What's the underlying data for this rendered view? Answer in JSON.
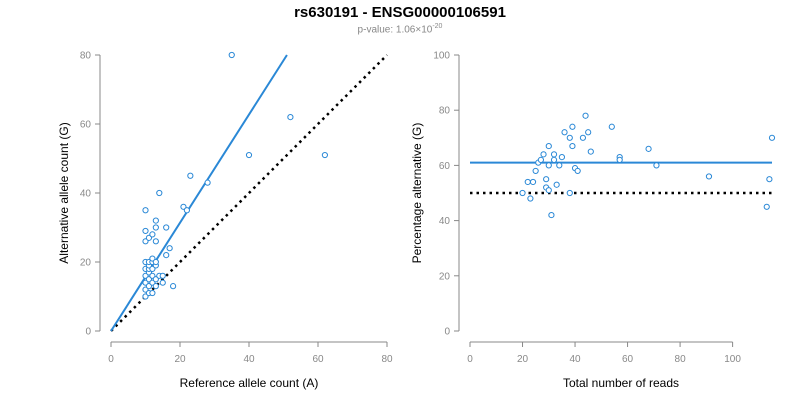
{
  "header": {
    "title": "rs630191 - ENSG00000106591",
    "pvalue_prefix": "p-value: 1.06×10",
    "pvalue_exponent": "-20"
  },
  "colors": {
    "accent": "#2a88d6",
    "reference": "#000000",
    "axis": "#888888"
  },
  "chart_data": [
    {
      "type": "scatter",
      "xlabel": "Reference allele count (A)",
      "ylabel": "Alternative allele count (G)",
      "xlim": [
        0,
        80
      ],
      "ylim": [
        0,
        80
      ],
      "xticks": [
        0,
        20,
        40,
        60,
        80
      ],
      "yticks": [
        0,
        20,
        40,
        60,
        80
      ],
      "grid": false,
      "points": [
        [
          10,
          10
        ],
        [
          10,
          12
        ],
        [
          10,
          14
        ],
        [
          10,
          16
        ],
        [
          10,
          18
        ],
        [
          10,
          20
        ],
        [
          10,
          26
        ],
        [
          10,
          29
        ],
        [
          10,
          35
        ],
        [
          11,
          11
        ],
        [
          11,
          13
        ],
        [
          11,
          15
        ],
        [
          11,
          17
        ],
        [
          11,
          18
        ],
        [
          11,
          19
        ],
        [
          11,
          20
        ],
        [
          11,
          27
        ],
        [
          12,
          11
        ],
        [
          12,
          14
        ],
        [
          12,
          16
        ],
        [
          12,
          18
        ],
        [
          12,
          20
        ],
        [
          12,
          21
        ],
        [
          12,
          28
        ],
        [
          13,
          13
        ],
        [
          13,
          15
        ],
        [
          13,
          19
        ],
        [
          13,
          20
        ],
        [
          13,
          26
        ],
        [
          13,
          30
        ],
        [
          13,
          32
        ],
        [
          14,
          16
        ],
        [
          14,
          40
        ],
        [
          15,
          14
        ],
        [
          15,
          16
        ],
        [
          16,
          22
        ],
        [
          16,
          30
        ],
        [
          17,
          24
        ],
        [
          18,
          13
        ],
        [
          21,
          36
        ],
        [
          22,
          35
        ],
        [
          23,
          45
        ],
        [
          28,
          43
        ],
        [
          35,
          80
        ],
        [
          40,
          51
        ],
        [
          52,
          62
        ],
        [
          62,
          51
        ]
      ],
      "fit_line": {
        "x": [
          0,
          51
        ],
        "y": [
          0,
          80
        ]
      },
      "reference_line": {
        "x": [
          0,
          80
        ],
        "y": [
          0,
          80
        ]
      }
    },
    {
      "type": "scatter",
      "xlabel": "Total number of reads",
      "ylabel": "Percentage alternative (G)",
      "xlim": [
        0,
        115
      ],
      "ylim": [
        0,
        100
      ],
      "xticks": [
        0,
        20,
        40,
        60,
        80,
        100
      ],
      "yticks": [
        0,
        20,
        40,
        60,
        80,
        100
      ],
      "grid": false,
      "points": [
        [
          20,
          50
        ],
        [
          22,
          54
        ],
        [
          23,
          48
        ],
        [
          24,
          54
        ],
        [
          25,
          58
        ],
        [
          26,
          61
        ],
        [
          27,
          62
        ],
        [
          28,
          64
        ],
        [
          29,
          52
        ],
        [
          29,
          55
        ],
        [
          30,
          51
        ],
        [
          30,
          67
        ],
        [
          30,
          60
        ],
        [
          31,
          42
        ],
        [
          32,
          64
        ],
        [
          32,
          62
        ],
        [
          33,
          53
        ],
        [
          34,
          60
        ],
        [
          35,
          63
        ],
        [
          36,
          72
        ],
        [
          38,
          50
        ],
        [
          38,
          70
        ],
        [
          39,
          74
        ],
        [
          39,
          67
        ],
        [
          40,
          59
        ],
        [
          41,
          58
        ],
        [
          43,
          70
        ],
        [
          44,
          78
        ],
        [
          45,
          72
        ],
        [
          46,
          65
        ],
        [
          54,
          74
        ],
        [
          57,
          63
        ],
        [
          57,
          62
        ],
        [
          68,
          66
        ],
        [
          71,
          60
        ],
        [
          91,
          56
        ],
        [
          113,
          45
        ],
        [
          114,
          55
        ],
        [
          115,
          70
        ]
      ],
      "fit_line": {
        "x": [
          0,
          115
        ],
        "y": [
          61,
          61
        ]
      },
      "reference_line": {
        "x": [
          0,
          115
        ],
        "y": [
          50,
          50
        ]
      }
    }
  ]
}
